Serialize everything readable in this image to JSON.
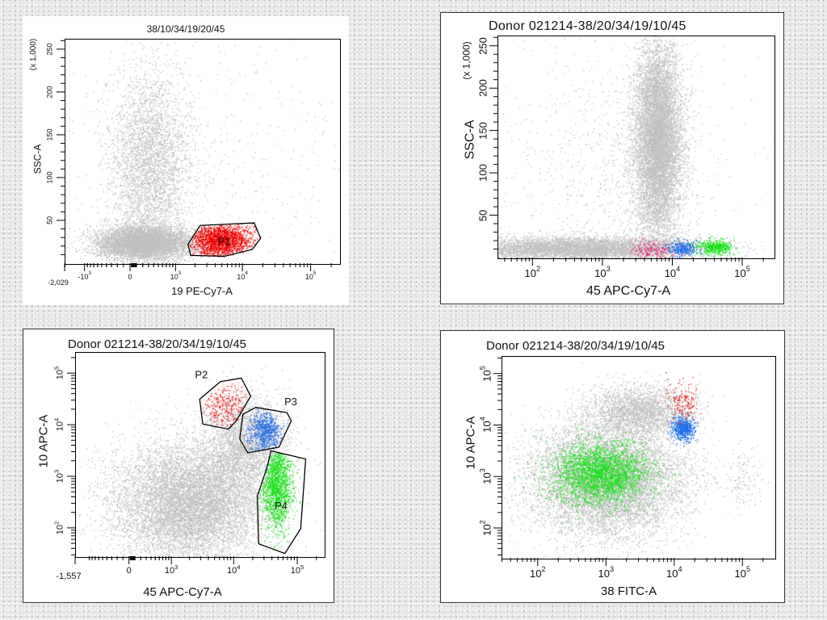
{
  "chart_data": [
    {
      "type": "scatter",
      "title": "38/10/34/19/20/45",
      "x_axis": {
        "label": "19 PE-Cy7-A",
        "type": "biex",
        "range": [
          -2029,
          262144
        ],
        "ticks": [
          {
            "value": -2029,
            "text": "-2,029"
          },
          {
            "value": -1000,
            "base": "-10",
            "exp": "3"
          },
          {
            "value": 0,
            "text": "0"
          },
          {
            "value": 1000,
            "base": "10",
            "exp": "3"
          },
          {
            "value": 10000,
            "base": "10",
            "exp": "4"
          },
          {
            "value": 100000,
            "base": "10",
            "exp": "5"
          }
        ]
      },
      "y_axis": {
        "label": "SSC-A",
        "multiplier": "(x 1,000)",
        "type": "lin",
        "range": [
          0,
          262144
        ],
        "ticks": [
          {
            "value": 50000,
            "text": "50"
          },
          {
            "value": 100000,
            "text": "100"
          },
          {
            "value": 150000,
            "text": "150"
          },
          {
            "value": 200000,
            "text": "200"
          },
          {
            "value": 250000,
            "text": "250"
          }
        ]
      },
      "gates": [
        {
          "name": "P1",
          "color": "#000000",
          "fill": "#fff5f5",
          "vertices": [
            [
              2325,
              45000
            ],
            [
              14500,
              48000
            ],
            [
              18000,
              30000
            ],
            [
              13600,
              17000
            ],
            [
              5330,
              9000
            ],
            [
              1670,
              10000
            ],
            [
              1520,
              23000
            ]
          ]
        }
      ],
      "populations": [
        {
          "name": "events",
          "color": "#c0c0c0",
          "n": 6000,
          "center": [
            200,
            25000
          ],
          "sd": [
            0.35,
            10000
          ]
        },
        {
          "name": "events-high-ssc",
          "color": "#c0c0c0",
          "n": 3500,
          "center": [
            300,
            120000
          ],
          "sd": [
            0.3,
            55000
          ]
        },
        {
          "name": "events-sparse",
          "color": "#c0c0c0",
          "n": 350,
          "center": [
            5000,
            130000
          ],
          "sd": [
            1.2,
            70000
          ]
        },
        {
          "name": "P1",
          "color": "#ee0000",
          "n": 1600,
          "center": [
            4500,
            28000
          ],
          "sd": [
            0.22,
            10000
          ],
          "gate": 0
        }
      ]
    },
    {
      "type": "scatter",
      "title": "Donor 021214-38/20/34/19/10/45",
      "x_axis": {
        "label": "45 APC-Cy7-A",
        "type": "log",
        "range": [
          31.6,
          281838
        ],
        "ticks": [
          {
            "value": 100,
            "base": "10",
            "exp": "2"
          },
          {
            "value": 1000,
            "base": "10",
            "exp": "3"
          },
          {
            "value": 10000,
            "base": "10",
            "exp": "4"
          },
          {
            "value": 100000,
            "base": "10",
            "exp": "5"
          }
        ]
      },
      "y_axis": {
        "label": "SSC-A",
        "multiplier": "(x 1,000)",
        "type": "lin",
        "range": [
          0,
          262144
        ],
        "ticks": [
          {
            "value": 50000,
            "text": "50"
          },
          {
            "value": 100000,
            "text": "100"
          },
          {
            "value": 150000,
            "text": "150"
          },
          {
            "value": 200000,
            "text": "200"
          },
          {
            "value": 250000,
            "text": "250"
          }
        ]
      },
      "gates": [],
      "populations": [
        {
          "name": "events",
          "color": "#c0c0c0",
          "n": 9000,
          "center": [
            6000,
            140000
          ],
          "sd": [
            0.17,
            58000
          ]
        },
        {
          "name": "events-low-ssc",
          "color": "#c0c0c0",
          "n": 5000,
          "center": [
            400,
            12000
          ],
          "sd": [
            0.9,
            7000
          ]
        },
        {
          "name": "events-sparse",
          "color": "#c0c0c0",
          "n": 900,
          "center": [
            1500,
            100000
          ],
          "sd": [
            0.8,
            70000
          ]
        },
        {
          "name": "P2",
          "color": "#e8186e",
          "n": 160,
          "center": [
            5000,
            10000
          ],
          "sd": [
            0.15,
            5000
          ]
        },
        {
          "name": "P3",
          "color": "#1e6fe8",
          "n": 320,
          "center": [
            14000,
            12000
          ],
          "sd": [
            0.11,
            4500
          ]
        },
        {
          "name": "P4",
          "color": "#18e018",
          "n": 420,
          "center": [
            40000,
            14000
          ],
          "sd": [
            0.12,
            4500
          ]
        }
      ]
    },
    {
      "type": "scatter",
      "title": "Donor 021214-38/20/34/19/10/45",
      "x_axis": {
        "label": "45 APC-Cy7-A",
        "type": "biex",
        "range": [
          -1557,
          262144
        ],
        "ticks": [
          {
            "value": -1557,
            "text": "-1,557"
          },
          {
            "value": 0,
            "text": "0"
          },
          {
            "value": 1000,
            "base": "10",
            "exp": "3"
          },
          {
            "value": 10000,
            "base": "10",
            "exp": "4"
          },
          {
            "value": 100000,
            "base": "10",
            "exp": "5"
          }
        ]
      },
      "y_axis": {
        "label": "10 APC-A",
        "type": "log",
        "range": [
          28.2,
          257000
        ],
        "ticks": [
          {
            "value": 100,
            "base": "10",
            "exp": "2"
          },
          {
            "value": 1000,
            "base": "10",
            "exp": "3"
          },
          {
            "value": 10000,
            "base": "10",
            "exp": "4"
          },
          {
            "value": 100000,
            "base": "10",
            "exp": "5"
          }
        ]
      },
      "gates": [
        {
          "name": "P2",
          "color": "#000000",
          "fill": "#fff8f8",
          "vertices": [
            [
              2820,
              32400
            ],
            [
              6000,
              70800
            ],
            [
              12800,
              83000
            ],
            [
              18000,
              37200
            ],
            [
              10700,
              12300
            ],
            [
              8000,
              8500
            ],
            [
              3160,
              10700
            ]
          ]
        },
        {
          "name": "P3",
          "color": "#000000",
          "fill": "none",
          "vertices": [
            [
              13600,
              16600
            ],
            [
              21600,
              22400
            ],
            [
              67000,
              17800
            ],
            [
              78000,
              12300
            ],
            [
              50000,
              3800
            ],
            [
              16200,
              2950
            ],
            [
              12100,
              5500
            ]
          ]
        },
        {
          "name": "P4",
          "color": "#000000",
          "fill": "none",
          "vertices": [
            [
              37500,
              3240
            ],
            [
              132000,
              2240
            ],
            [
              110000,
              100
            ],
            [
              62000,
              33
            ],
            [
              24000,
              51
            ],
            [
              22900,
              427
            ],
            [
              32600,
              1550
            ]
          ]
        }
      ],
      "populations": [
        {
          "name": "events",
          "color": "#c0c0c0",
          "n": 9000,
          "center": [
            2000,
            316
          ],
          "sd": [
            0.6,
            0.6
          ]
        },
        {
          "name": "events-upper",
          "color": "#c0c0c0",
          "n": 2500,
          "center": [
            15000,
            5000
          ],
          "sd": [
            0.3,
            0.45
          ]
        },
        {
          "name": "P2",
          "color": "#ee1111",
          "n": 220,
          "center": [
            7000,
            25000
          ],
          "sd": [
            0.18,
            0.22
          ],
          "gate": 0
        },
        {
          "name": "P3",
          "color": "#2a70e0",
          "n": 700,
          "center": [
            30000,
            8000
          ],
          "sd": [
            0.13,
            0.2
          ],
          "gate": 1
        },
        {
          "name": "P4",
          "color": "#18e018",
          "n": 1400,
          "center": [
            45000,
            800
          ],
          "sd": [
            0.12,
            0.45
          ],
          "gate": 2
        }
      ]
    },
    {
      "type": "scatter",
      "title": "Donor 021214-38/20/34/19/10/45",
      "x_axis": {
        "label": "38 FITC-A",
        "type": "log",
        "range": [
          29.5,
          295000
        ],
        "ticks": [
          {
            "value": 100,
            "base": "10",
            "exp": "2"
          },
          {
            "value": 1000,
            "base": "10",
            "exp": "3"
          },
          {
            "value": 10000,
            "base": "10",
            "exp": "4"
          },
          {
            "value": 100000,
            "base": "10",
            "exp": "5"
          }
        ]
      },
      "y_axis": {
        "label": "10 APC-A",
        "type": "log",
        "range": [
          26.3,
          218800
        ],
        "ticks": [
          {
            "value": 100,
            "base": "10",
            "exp": "2"
          },
          {
            "value": 1000,
            "base": "10",
            "exp": "3"
          },
          {
            "value": 10000,
            "base": "10",
            "exp": "4"
          },
          {
            "value": 100000,
            "base": "10",
            "exp": "5"
          }
        ]
      },
      "gates": [],
      "populations": [
        {
          "name": "events",
          "color": "#c0c0c0",
          "n": 9000,
          "center": [
            1000,
            900
          ],
          "sd": [
            0.55,
            0.55
          ]
        },
        {
          "name": "events-upper",
          "color": "#c0c0c0",
          "n": 2500,
          "center": [
            3000,
            20000
          ],
          "sd": [
            0.4,
            0.25
          ]
        },
        {
          "name": "events-right",
          "color": "#c0c0c0",
          "n": 150,
          "center": [
            100000,
            1000
          ],
          "sd": [
            0.15,
            0.3
          ]
        },
        {
          "name": "P4",
          "color": "#18e018",
          "n": 2600,
          "center": [
            800,
            1200
          ],
          "sd": [
            0.35,
            0.3
          ]
        },
        {
          "name": "P3",
          "color": "#1e6fe8",
          "n": 600,
          "center": [
            13000,
            9000
          ],
          "sd": [
            0.08,
            0.12
          ]
        },
        {
          "name": "P2",
          "color": "#ee1111",
          "n": 150,
          "center": [
            13000,
            30000
          ],
          "sd": [
            0.12,
            0.2
          ]
        }
      ]
    }
  ]
}
